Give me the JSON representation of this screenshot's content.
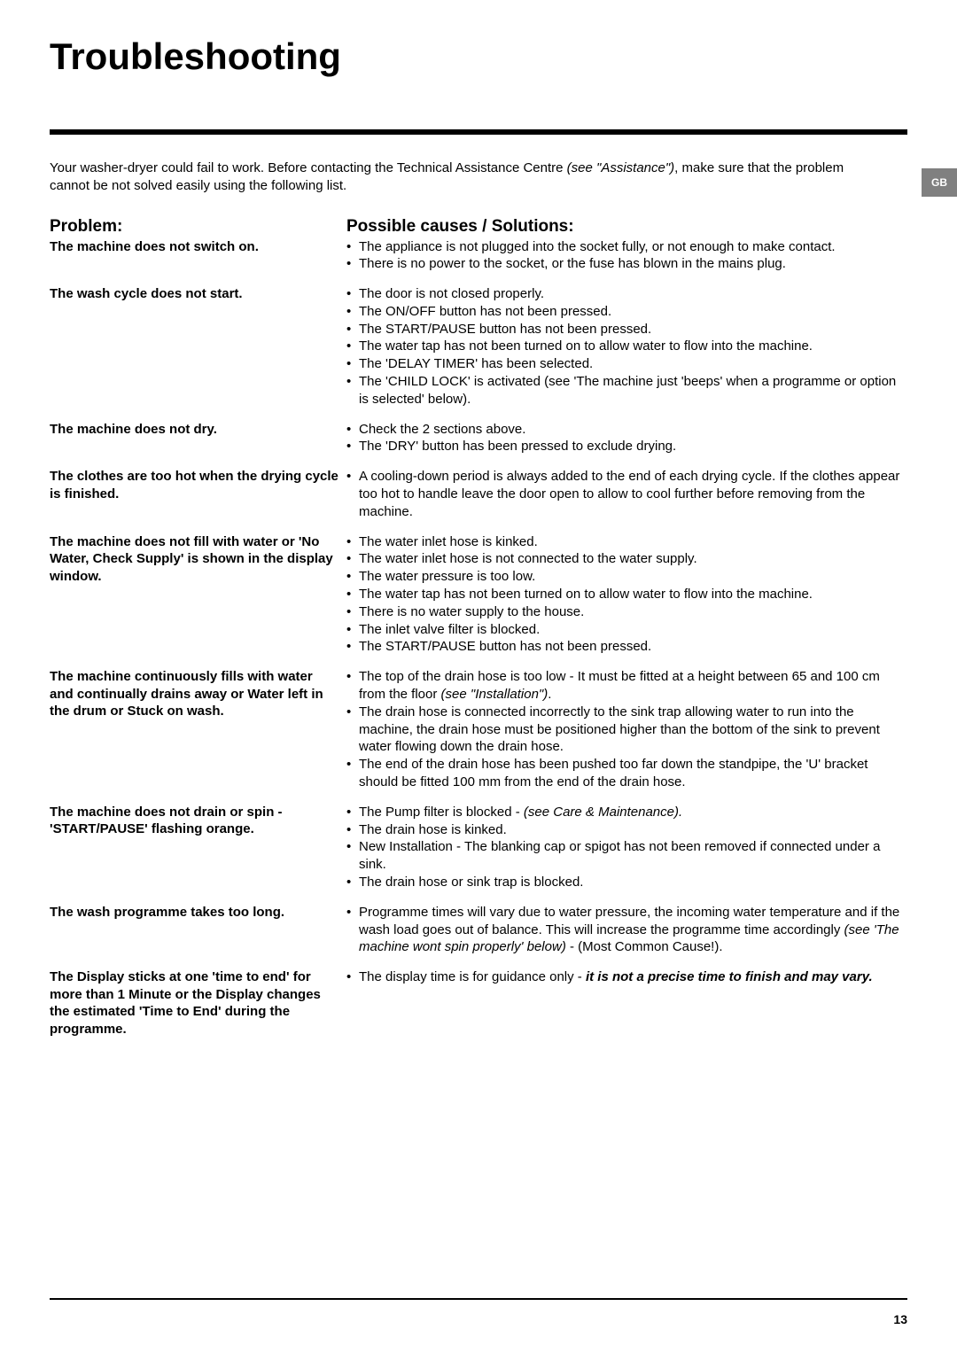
{
  "title": "Troubleshooting",
  "intro_pre": "Your washer-dryer could fail to work. Before contacting the Technical Assistance Centre ",
  "intro_em": "(see \"Assistance\")",
  "intro_post": ", make sure that the problem cannot be not solved easily using the following list.",
  "tab": "GB",
  "headers": {
    "problem": "Problem:",
    "solutions": "Possible causes / Solutions:"
  },
  "rows": [
    {
      "problem": "The machine does not switch on.",
      "items": [
        "The appliance is not plugged into the socket fully, or not enough to make contact.",
        "There is no power to the socket, or the fuse has blown in the mains plug."
      ]
    },
    {
      "problem": "The wash cycle does not start.",
      "items": [
        "The door is not closed properly.",
        "The ON/OFF button has not been pressed.",
        "The START/PAUSE button has not been pressed.",
        "The water tap has not been turned on to allow water to flow into the machine.",
        "The 'DELAY TIMER' has been selected.",
        "The 'CHILD LOCK' is activated  (see 'The machine just 'beeps' when a programme or option is selected' below)."
      ]
    },
    {
      "problem": "The machine does not dry.",
      "items": [
        "Check the 2 sections above.",
        "The 'DRY' button has been pressed to exclude drying."
      ]
    },
    {
      "problem": "The clothes are too hot when the drying cycle is finished.",
      "items": [
        "A cooling-down period is always added to the end of each drying cycle.  If the clothes appear too hot to handle leave the door open to allow to cool further before removing from the machine."
      ]
    },
    {
      "problem": "The machine does not fill with water or 'No Water, Check Supply' is shown in the display window.",
      "items": [
        "The water inlet hose is kinked.",
        "The water inlet hose is not connected to the water supply.",
        "The water pressure is too low.",
        "The water tap has not been turned on to allow water to flow into the machine.",
        "There is no water supply to the house.",
        "The inlet  valve filter is blocked.",
        "The START/PAUSE button has not been pressed."
      ]
    },
    {
      "problem": "The machine continuously fills with water and continually drains away or Water left in the drum or Stuck on wash.",
      "items_html": [
        "The top of the drain hose is too low - It must be fitted at a height between 65 and 100 cm from the floor <em>(see \"Installation\")</em>.",
        "The drain hose is connected incorrectly to the sink trap allowing water to run into the machine, the drain hose must be positioned higher than the bottom of the sink to prevent water flowing down the drain hose.",
        "The end of the drain hose has been pushed too far down the standpipe, the 'U' bracket should be fitted 100 mm from the end of the drain hose."
      ]
    },
    {
      "problem": "The machine does not drain or spin - 'START/PAUSE' flashing orange.",
      "items_html": [
        "The Pump filter is blocked - <em>(see Care & Maintenance).</em>",
        "The drain hose is kinked.",
        "New Installation -  The blanking cap or spigot has not been removed if connected under a sink.",
        "The drain hose or sink trap is blocked."
      ]
    },
    {
      "problem": "The wash programme takes too long.",
      "items_html": [
        "Programme times will vary due to water pressure, the incoming water temperature and if the wash load goes out of balance. This will increase the programme time accordingly <em>(see 'The machine wont spin properly' below)</em> -  (Most Common Cause!)."
      ]
    },
    {
      "problem": "The Display sticks at one 'time to end'  for more than 1 Minute or the Display changes the estimated 'Time to End' during the programme.",
      "items_html": [
        "The display time is for guidance only  -  <span class=\"bi\">it is not a precise time to finish and may vary.</span>"
      ]
    }
  ],
  "page_number": "13"
}
